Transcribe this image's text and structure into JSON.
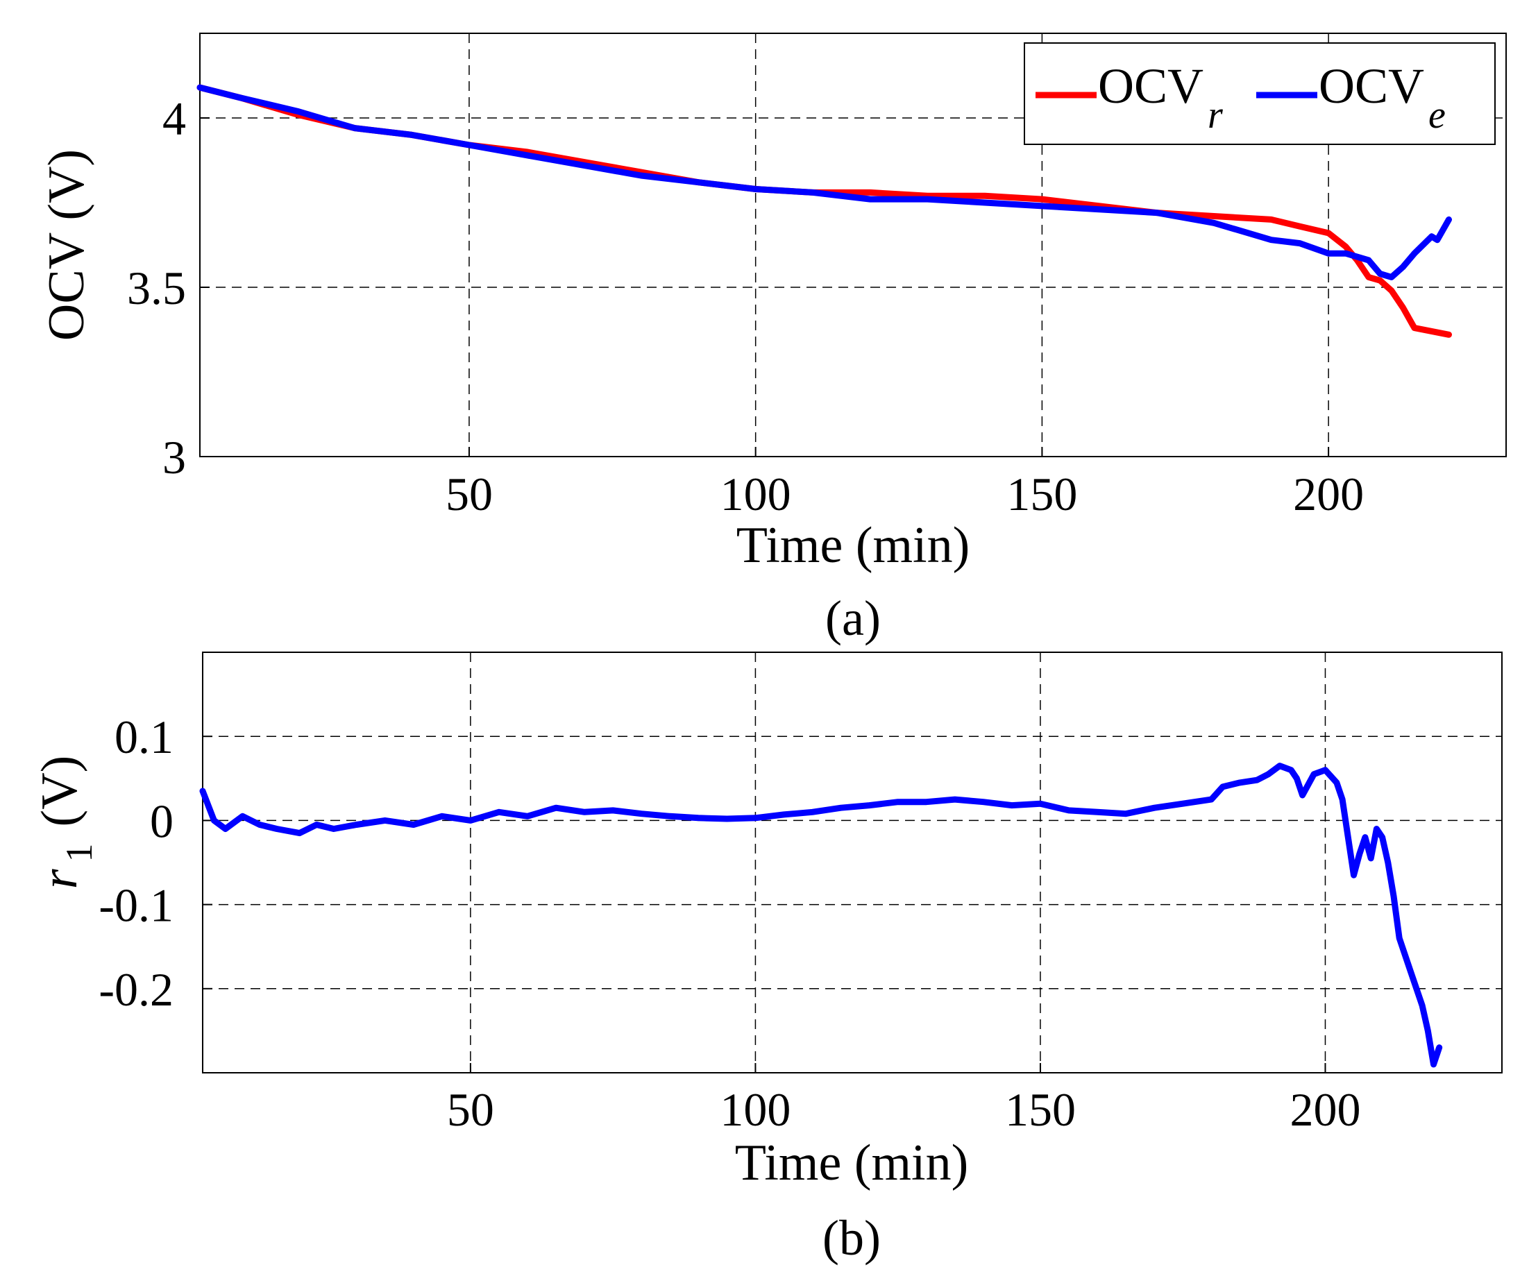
{
  "chart_data": [
    {
      "type": "line",
      "panel_label": "(a)",
      "xlabel": "Time (min)",
      "ylabel": "OCV (V)",
      "xlim": [
        3,
        231
      ],
      "ylim": [
        3,
        4.25
      ],
      "xticks": [
        50,
        100,
        150,
        200
      ],
      "yticks": [
        3,
        3.5,
        4
      ],
      "xtick_labels": [
        "50",
        "100",
        "150",
        "200"
      ],
      "ytick_labels": [
        "3",
        "3.5",
        "4"
      ],
      "grid": true,
      "legend": "top-right",
      "series": [
        {
          "name": "OCV_r",
          "legend_main": "OCV",
          "legend_sub": "r",
          "color": "#ff0000",
          "x": [
            3,
            10,
            20,
            30,
            40,
            50,
            60,
            70,
            80,
            90,
            100,
            110,
            120,
            130,
            140,
            150,
            160,
            170,
            180,
            190,
            195,
            200,
            203,
            205,
            207,
            209,
            211,
            213,
            215,
            218,
            221
          ],
          "y": [
            4.09,
            4.06,
            4.01,
            3.97,
            3.95,
            3.92,
            3.9,
            3.87,
            3.84,
            3.81,
            3.79,
            3.78,
            3.78,
            3.77,
            3.77,
            3.76,
            3.74,
            3.72,
            3.71,
            3.7,
            3.68,
            3.66,
            3.62,
            3.58,
            3.53,
            3.52,
            3.49,
            3.44,
            3.38,
            3.37,
            3.36
          ]
        },
        {
          "name": "OCV_e",
          "legend_main": "OCV",
          "legend_sub": "e",
          "color": "#0000ff",
          "x": [
            3,
            10,
            20,
            30,
            40,
            50,
            60,
            70,
            80,
            90,
            100,
            110,
            120,
            130,
            140,
            150,
            160,
            170,
            180,
            190,
            195,
            200,
            203,
            205,
            207,
            209,
            211,
            213,
            215,
            218,
            219,
            221
          ],
          "y": [
            4.09,
            4.06,
            4.02,
            3.97,
            3.95,
            3.92,
            3.89,
            3.86,
            3.83,
            3.81,
            3.79,
            3.78,
            3.76,
            3.76,
            3.75,
            3.74,
            3.73,
            3.72,
            3.69,
            3.64,
            3.63,
            3.6,
            3.6,
            3.59,
            3.58,
            3.54,
            3.53,
            3.56,
            3.6,
            3.65,
            3.64,
            3.7
          ]
        }
      ]
    },
    {
      "type": "line",
      "panel_label": "(b)",
      "xlabel": "Time (min)",
      "ylabel_main": "r",
      "ylabel_sub": "1",
      "ylabel_unit": "(V)",
      "xlim": [
        3,
        231
      ],
      "ylim": [
        -0.3,
        0.2
      ],
      "xticks": [
        50,
        100,
        150,
        200
      ],
      "yticks": [
        -0.2,
        -0.1,
        0,
        0.1
      ],
      "xtick_labels": [
        "50",
        "100",
        "150",
        "200"
      ],
      "ytick_labels": [
        "-0.2",
        "-0.1",
        "0",
        "0.1"
      ],
      "grid": true,
      "series": [
        {
          "color": "#0000ff",
          "x": [
            3,
            5,
            7,
            10,
            13,
            16,
            20,
            23,
            26,
            30,
            35,
            40,
            45,
            50,
            55,
            60,
            65,
            70,
            75,
            80,
            85,
            90,
            95,
            100,
            105,
            110,
            115,
            120,
            125,
            130,
            135,
            140,
            145,
            150,
            155,
            160,
            165,
            170,
            175,
            180,
            182,
            185,
            188,
            190,
            192,
            194,
            195,
            196,
            198,
            200,
            202,
            203,
            204,
            205,
            206,
            207,
            208,
            209,
            210,
            211,
            212,
            213,
            215,
            217,
            218,
            219,
            220
          ],
          "y": [
            0.035,
            0.0,
            -0.01,
            0.005,
            -0.005,
            -0.01,
            -0.015,
            -0.005,
            -0.01,
            -0.005,
            0.0,
            -0.005,
            0.005,
            0.0,
            0.01,
            0.005,
            0.015,
            0.01,
            0.012,
            0.008,
            0.005,
            0.003,
            0.002,
            0.003,
            0.007,
            0.01,
            0.015,
            0.018,
            0.022,
            0.022,
            0.025,
            0.022,
            0.018,
            0.02,
            0.012,
            0.01,
            0.008,
            0.015,
            0.02,
            0.025,
            0.04,
            0.045,
            0.048,
            0.055,
            0.065,
            0.06,
            0.05,
            0.03,
            0.055,
            0.06,
            0.045,
            0.025,
            -0.02,
            -0.065,
            -0.04,
            -0.02,
            -0.045,
            -0.01,
            -0.02,
            -0.05,
            -0.09,
            -0.14,
            -0.18,
            -0.22,
            -0.25,
            -0.29,
            -0.27
          ]
        }
      ]
    }
  ]
}
